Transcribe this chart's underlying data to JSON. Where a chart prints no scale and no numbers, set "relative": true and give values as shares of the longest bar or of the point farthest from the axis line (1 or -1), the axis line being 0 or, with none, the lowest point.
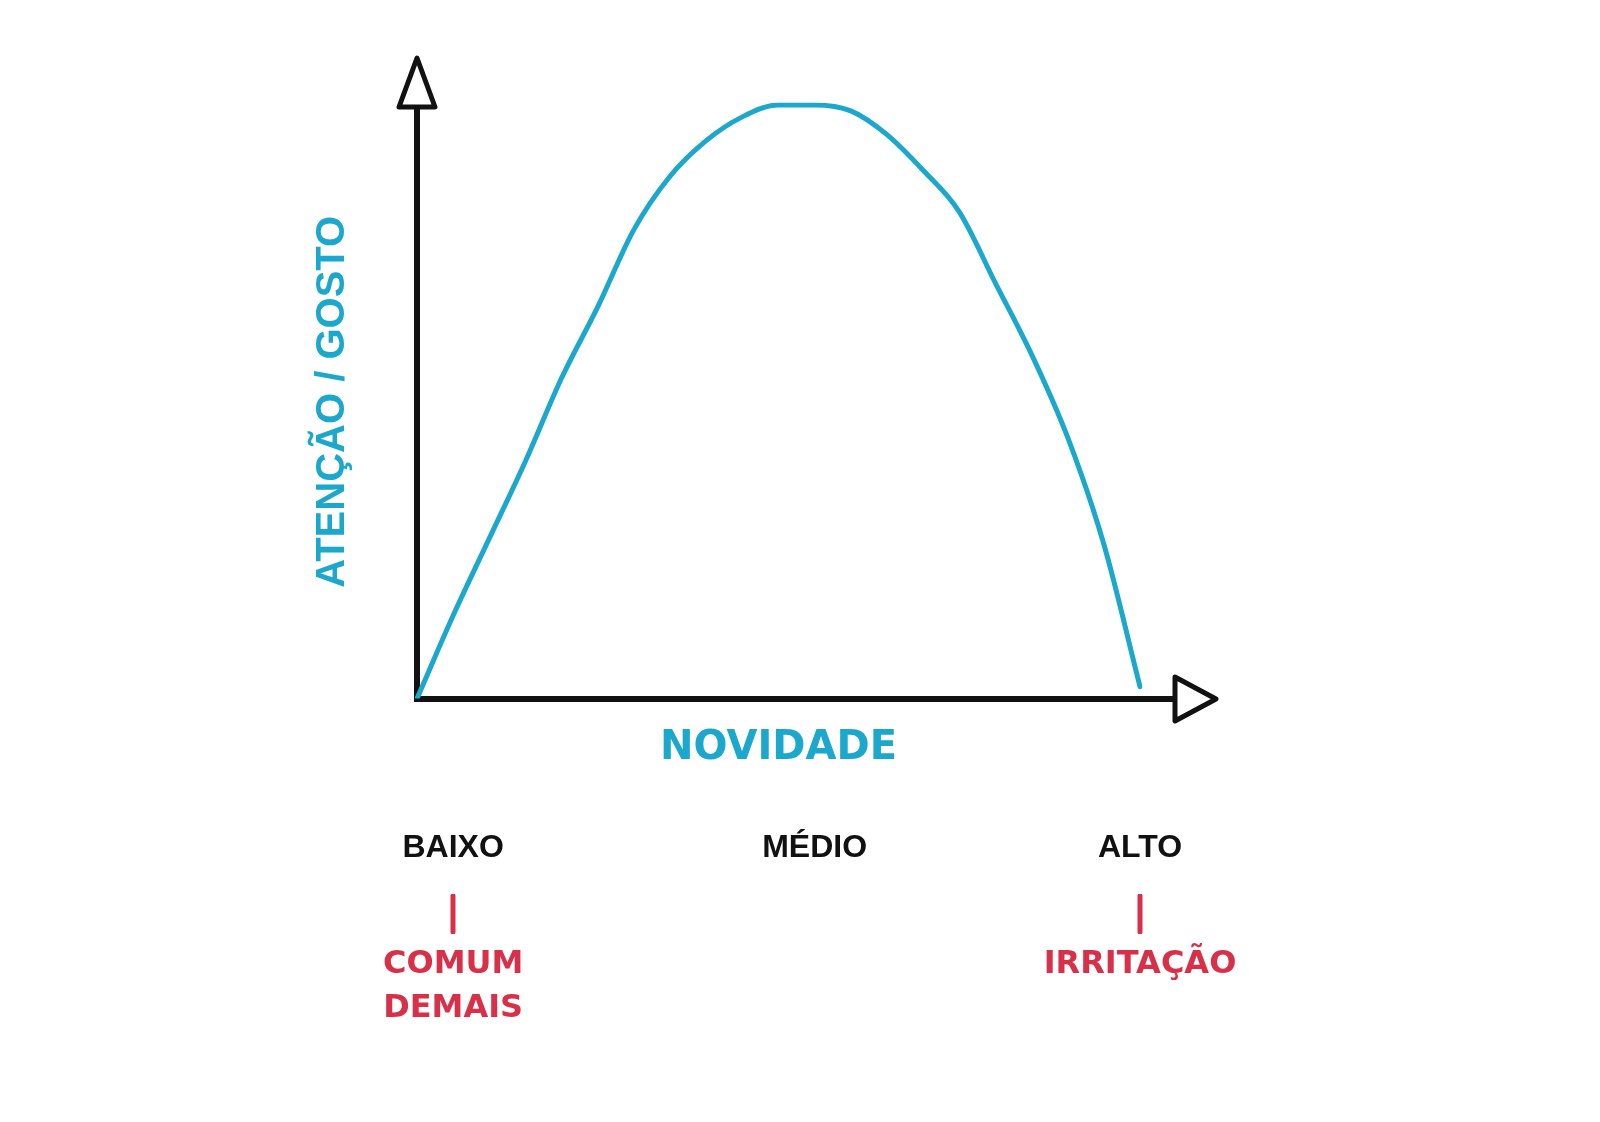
{
  "chart_data": {
    "type": "line",
    "relative": true,
    "xlabel": "NOVIDADE",
    "ylabel": "ATENÇÃO / GOSTO",
    "categories": [
      null,
      "BAIXO",
      null,
      null,
      null,
      null,
      null,
      null,
      null,
      null,
      null,
      "MÉDIO",
      null,
      null,
      null,
      null,
      null,
      null,
      null,
      null,
      "ALTO"
    ],
    "series": [
      {
        "color": "#1ba8cc",
        "values": [
          0,
          0.14,
          0.27,
          0.4,
          0.54,
          0.66,
          0.79,
          0.88,
          0.94,
          0.98,
          1,
          1,
          0.99,
          0.95,
          0.89,
          0.82,
          0.7,
          0.58,
          0.44,
          0.26,
          0.02
        ]
      }
    ],
    "annotations": [
      {
        "text": "COMUM DEMAIS",
        "x": "BAIXO"
      },
      {
        "text": "IRRITAÇÃO",
        "x": "ALTO"
      }
    ],
    "legend": false,
    "marker": "none",
    "line_style": "solid"
  }
}
